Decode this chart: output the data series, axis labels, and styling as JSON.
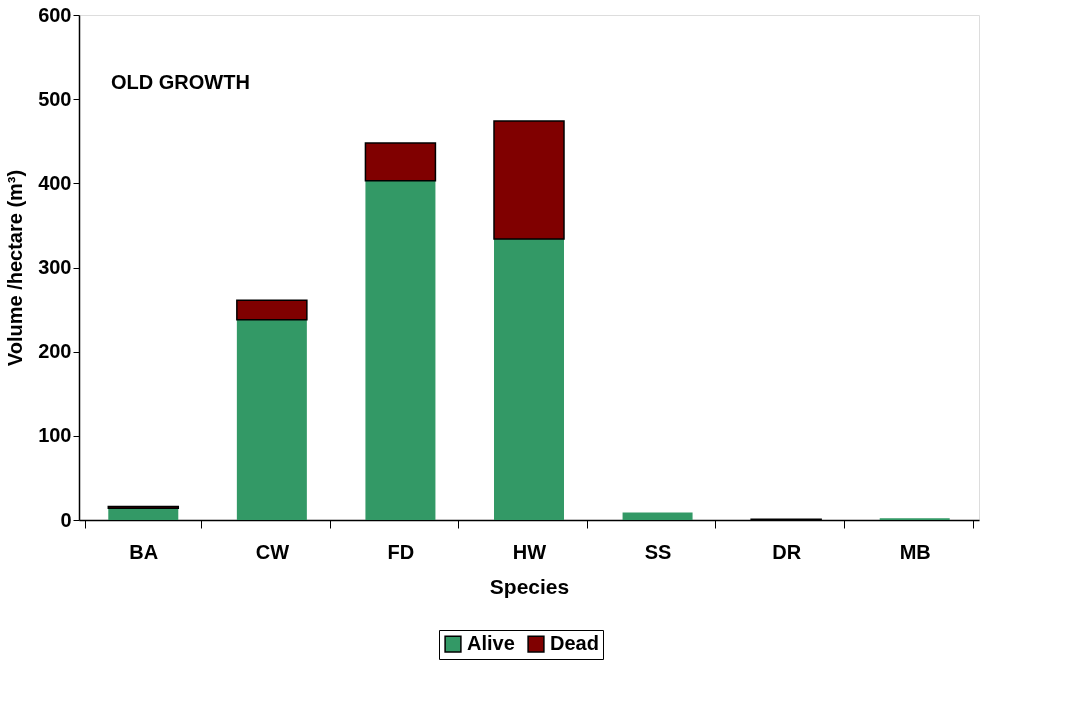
{
  "chart_data": {
    "type": "bar",
    "stacked": true,
    "xlabel": "Species",
    "ylabel": "Volume /hectare (m³)",
    "annotations": [
      "OLD GROWTH"
    ],
    "categories": [
      "BA",
      "CW",
      "FD",
      "HW",
      "SS",
      "DR",
      "MB"
    ],
    "series": [
      {
        "name": "Alive",
        "color": "#339966",
        "values": [
          14,
          238,
          403,
          334,
          9,
          null,
          2
        ]
      },
      {
        "name": "Dead",
        "color": "#800000",
        "values": [
          2,
          23,
          45,
          140,
          null,
          1,
          null
        ]
      }
    ],
    "ylim": [
      0,
      600
    ],
    "yticks": [
      0,
      100,
      200,
      300,
      400,
      500,
      600
    ],
    "grid": false,
    "legend": "bottom"
  }
}
